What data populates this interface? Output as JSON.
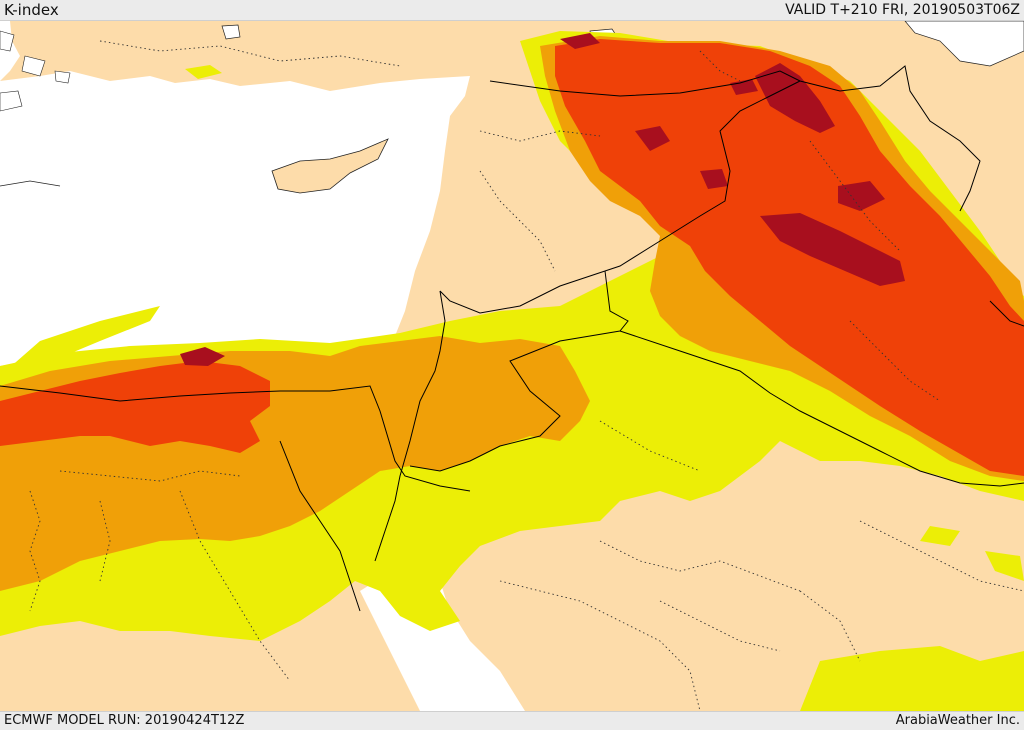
{
  "header": {
    "title": "K-index",
    "valid": "VALID T+210 FRI, 20190503T06Z"
  },
  "footer": {
    "model_run": "ECMWF MODEL RUN: 20190424T12Z",
    "credit": "ArabiaWeather Inc."
  },
  "colors": {
    "sea": "#ffffff",
    "land": "#fddcaa",
    "level_1": "#ecee06",
    "level_2": "#f0a008",
    "level_3": "#ef4108",
    "level_4": "#a80f1e",
    "country_border": "#000000",
    "province_border": "#333333"
  }
}
